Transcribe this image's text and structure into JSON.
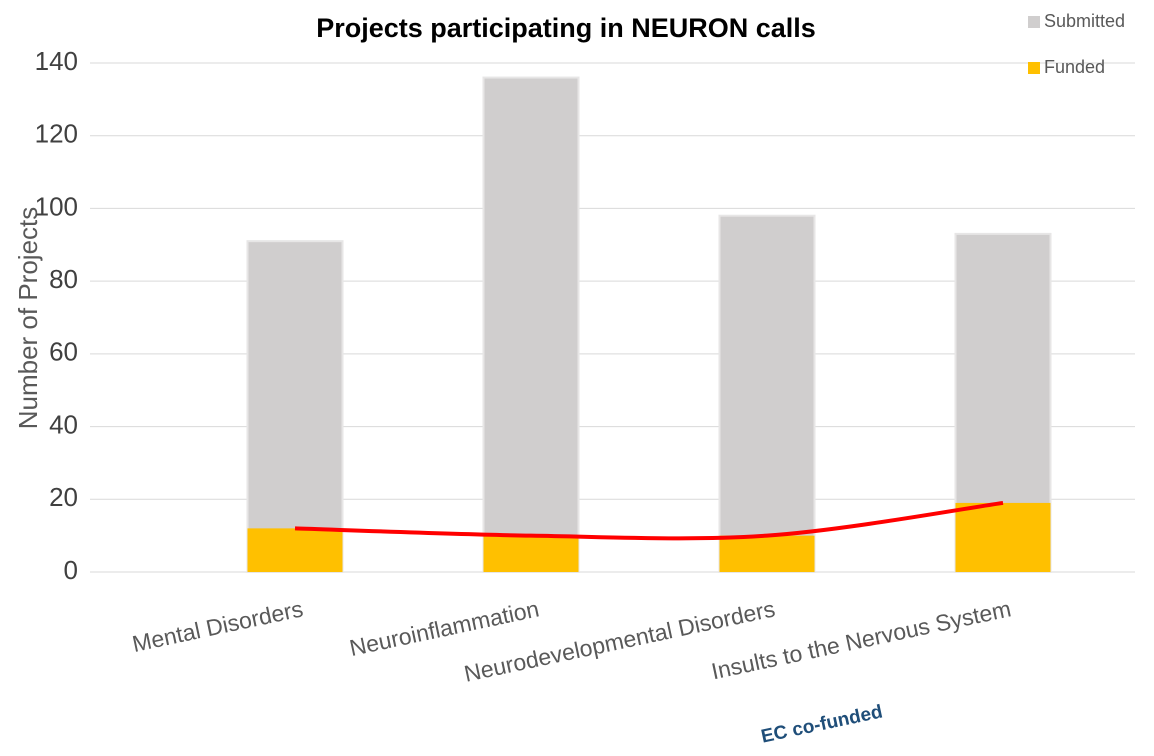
{
  "chart_data": {
    "type": "bar",
    "title": "Projects participating in NEURON calls",
    "y_label": "Number of Projects",
    "annotation": "EC co-funded",
    "categories": [
      "Mental Disorders",
      "Neuroinflammation",
      "Neurodevelopmental Disorders",
      "Insults to the Nervous System"
    ],
    "series": [
      {
        "name": "Submitted",
        "color": "#d0cece",
        "values": [
          91,
          136,
          98,
          93
        ]
      },
      {
        "name": "Funded",
        "color": "#ffc000",
        "values": [
          12,
          10,
          10,
          19
        ]
      }
    ],
    "trend_color": "#ff0000",
    "ylim": [
      0,
      140
    ],
    "yticks": [
      0,
      20,
      40,
      60,
      80,
      100,
      120,
      140
    ],
    "grid": true,
    "legend": "top-right"
  }
}
